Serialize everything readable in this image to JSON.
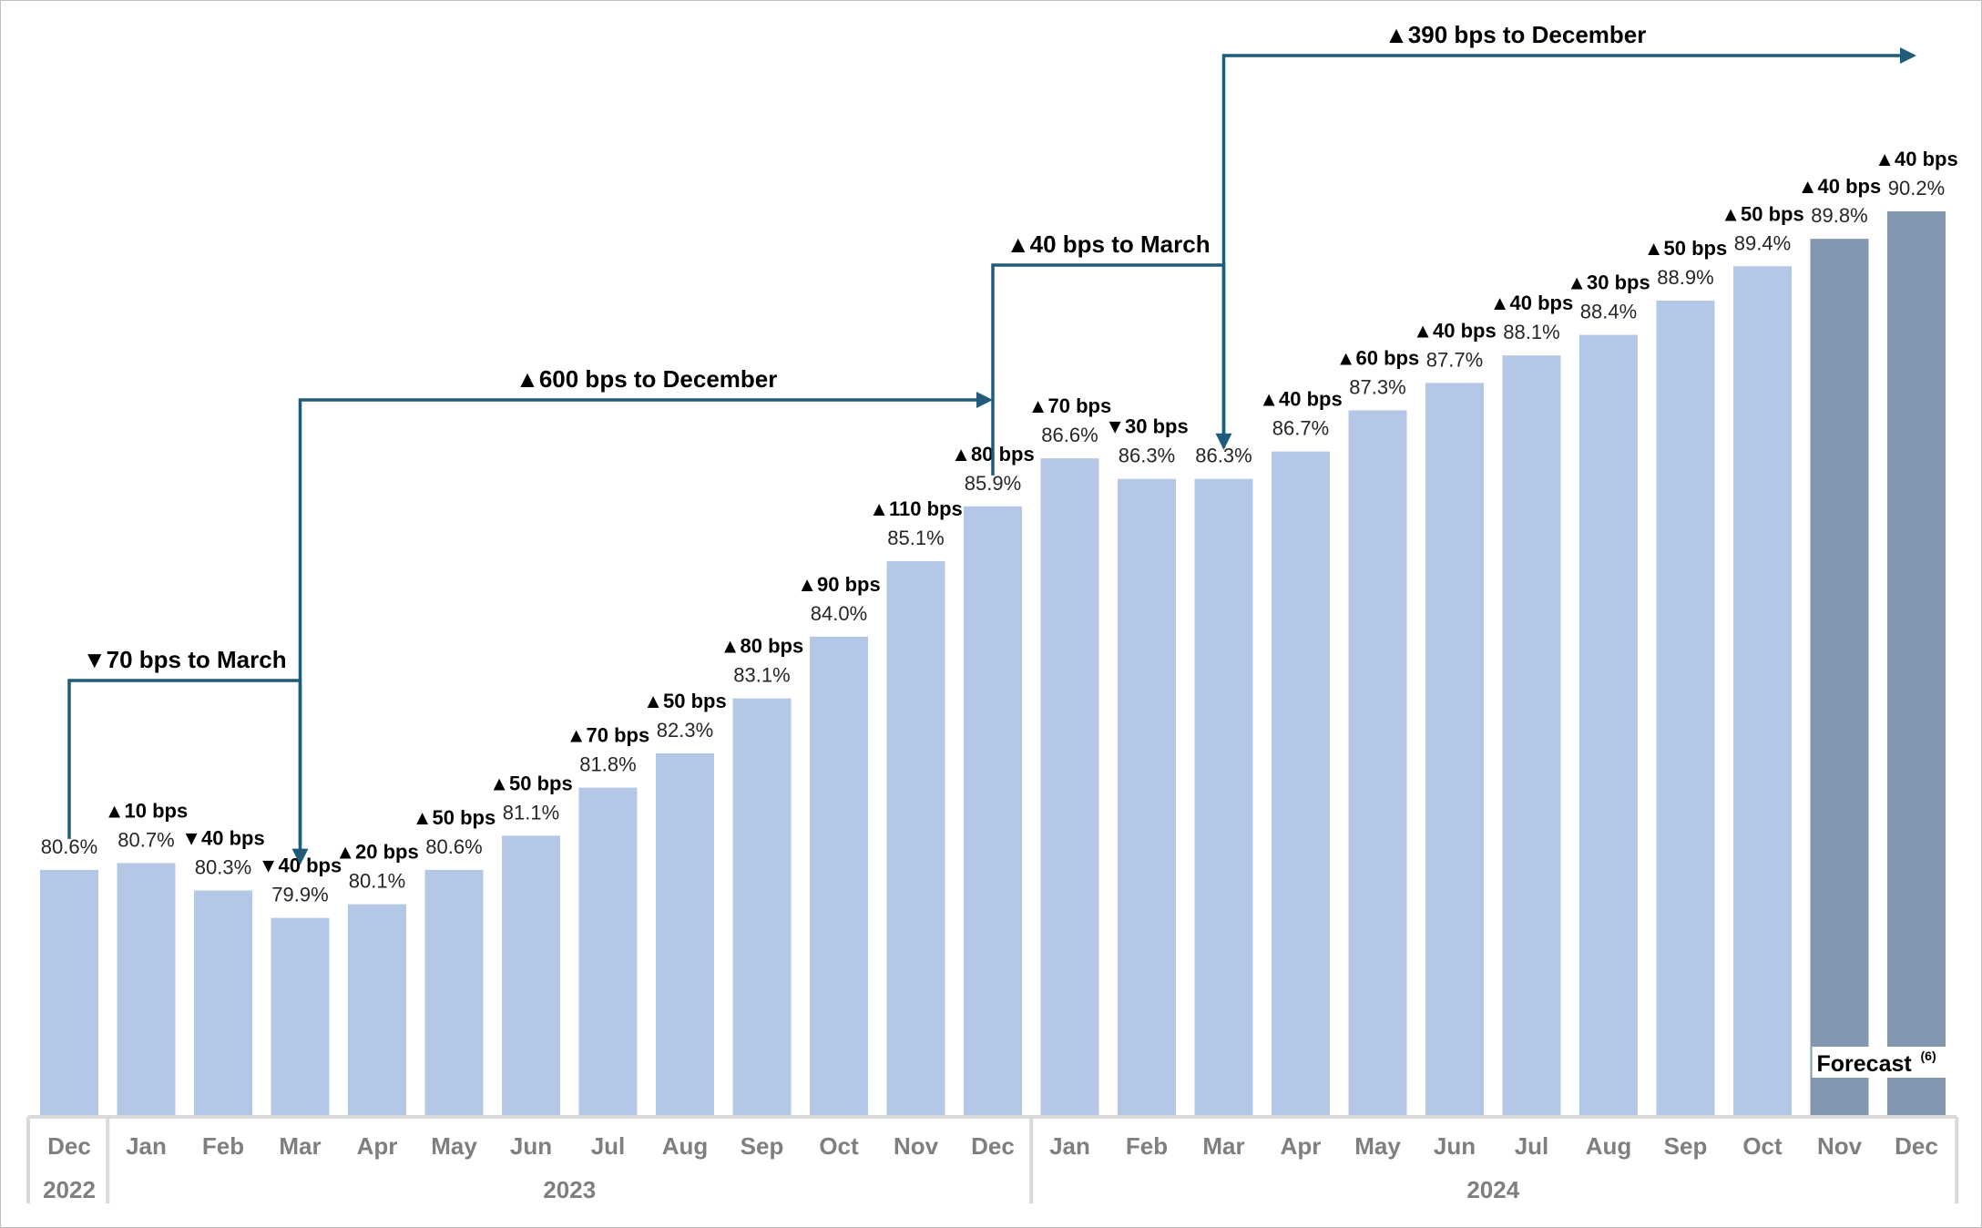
{
  "chart_data": {
    "type": "bar",
    "categories": [
      "Dec",
      "Jan",
      "Feb",
      "Mar",
      "Apr",
      "May",
      "Jun",
      "Jul",
      "Aug",
      "Sep",
      "Oct",
      "Nov",
      "Dec",
      "Jan",
      "Feb",
      "Mar",
      "Apr",
      "May",
      "Jun",
      "Jul",
      "Aug",
      "Sep",
      "Oct",
      "Nov",
      "Dec"
    ],
    "years": [
      {
        "label": "2022",
        "from": 0,
        "to": 0
      },
      {
        "label": "2023",
        "from": 1,
        "to": 12
      },
      {
        "label": "2024",
        "from": 13,
        "to": 24
      }
    ],
    "values": [
      80.6,
      80.7,
      80.3,
      79.9,
      80.1,
      80.6,
      81.1,
      81.8,
      82.3,
      83.1,
      84.0,
      85.1,
      85.9,
      86.6,
      86.3,
      86.3,
      86.7,
      87.3,
      87.7,
      88.1,
      88.4,
      88.9,
      89.4,
      89.8,
      90.2
    ],
    "value_labels": [
      "80.6%",
      "80.7%",
      "80.3%",
      "79.9%",
      "80.1%",
      "80.6%",
      "81.1%",
      "81.8%",
      "82.3%",
      "83.1%",
      "84.0%",
      "85.1%",
      "85.9%",
      "86.6%",
      "86.3%",
      "86.3%",
      "86.7%",
      "87.3%",
      "87.7%",
      "88.1%",
      "88.4%",
      "88.9%",
      "89.4%",
      "89.8%",
      "90.2%"
    ],
    "changes": [
      null,
      "▲10 bps",
      "▼40 bps",
      "▼40 bps",
      "▲20 bps",
      "▲50 bps",
      "▲50 bps",
      "▲70 bps",
      "▲50 bps",
      "▲80 bps",
      "▲90 bps",
      "▲110 bps",
      "▲80 bps",
      "▲70 bps",
      "▼30 bps",
      null,
      "▲40 bps",
      "▲60 bps",
      "▲40 bps",
      "▲40 bps",
      "▲30 bps",
      "▲50 bps",
      "▲50 bps",
      "▲40 bps",
      "▲40 bps"
    ],
    "forecast_from_index": 23,
    "forecast_label": "Forecast",
    "forecast_superscript": "(6)",
    "annotations": [
      {
        "text": "▼70 bps to March",
        "from": 0,
        "to": 3
      },
      {
        "text": "▲600 bps to December",
        "from": 3,
        "to": 12
      },
      {
        "text": "▲40 bps to March",
        "from": 12,
        "to": 15
      },
      {
        "text": "▲390 bps to December",
        "from": 15,
        "to": 24
      }
    ],
    "title": "",
    "xlabel": "",
    "ylabel": "",
    "ylim": [
      77.0,
      91.0
    ],
    "grid": false,
    "legend": "none",
    "colors": {
      "actual": "#b4c7e7",
      "forecast": "#8497b0",
      "arrow": "#1f5c7a",
      "axis": "#d9d9d9"
    }
  }
}
